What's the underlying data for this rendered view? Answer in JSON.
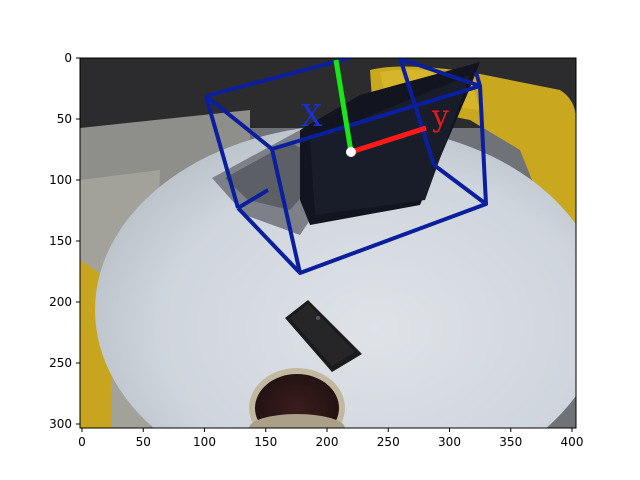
{
  "figure": {
    "x_axis": {
      "ticks": [
        "0",
        "50",
        "100",
        "150",
        "200",
        "250",
        "300",
        "350",
        "400"
      ]
    },
    "y_axis": {
      "ticks": [
        "0",
        "50",
        "100",
        "150",
        "200",
        "250",
        "300"
      ]
    }
  },
  "overlay": {
    "label_blue": "X",
    "label_red": "y",
    "colors": {
      "box": "#0b1f9e",
      "axis_green": "#19e619",
      "axis_red": "#ff1a1a",
      "label_blue": "#1a2fd6",
      "label_red": "#e61a1a",
      "origin": "#ffffff"
    }
  }
}
